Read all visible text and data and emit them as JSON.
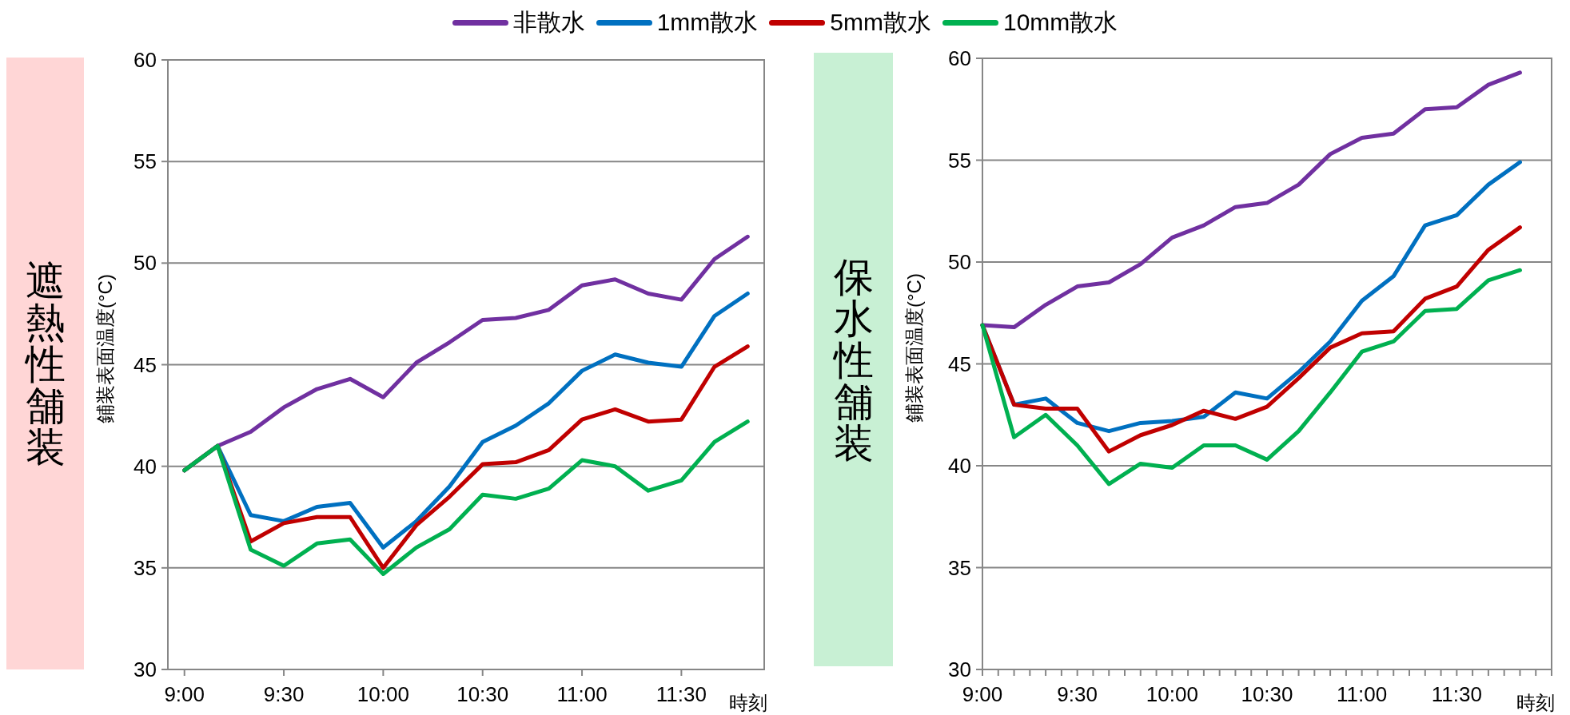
{
  "chart_data": [
    {
      "type": "line",
      "title": "遮熱性舗装",
      "ylabel": "鋪装表面温度(°C)",
      "xlabel": "時刻",
      "legend": "top",
      "grid": "y",
      "x": [
        9,
        9.1667,
        9.3333,
        9.5,
        9.6667,
        9.8333,
        10,
        10.1667,
        10.3333,
        10.5,
        10.6667,
        10.8333,
        11,
        11.1667,
        11.3333,
        11.5,
        11.6667,
        11.8333
      ],
      "xlim": [
        8.9167,
        11.9167
      ],
      "xticks": [
        {
          "value": 9,
          "label": "9:00"
        },
        {
          "value": 9.5,
          "label": "9:30"
        },
        {
          "value": 10,
          "label": "10:00"
        },
        {
          "value": 10.5,
          "label": "10:30"
        },
        {
          "value": 11,
          "label": "11:00"
        },
        {
          "value": 11.5,
          "label": "11:30"
        }
      ],
      "ylim": [
        30,
        60
      ],
      "yticks": [
        30,
        35,
        40,
        45,
        50,
        55,
        60
      ],
      "series": [
        {
          "name": "非散水",
          "color": "#7030a0",
          "values": [
            39.8,
            41.0,
            41.7,
            42.9,
            43.8,
            44.3,
            43.4,
            45.1,
            46.1,
            47.2,
            47.3,
            47.7,
            48.9,
            49.2,
            48.5,
            48.2,
            50.2,
            51.3
          ]
        },
        {
          "name": "1mm散水",
          "color": "#0070c0",
          "values": [
            39.8,
            41.0,
            37.6,
            37.3,
            38.0,
            38.2,
            36.0,
            37.3,
            39.0,
            41.2,
            42.0,
            43.1,
            44.7,
            45.5,
            45.1,
            44.9,
            47.4,
            48.5
          ]
        },
        {
          "name": "5mm散水",
          "color": "#c00000",
          "values": [
            39.8,
            41.0,
            36.3,
            37.2,
            37.5,
            37.5,
            35.0,
            37.1,
            38.5,
            40.1,
            40.2,
            40.8,
            42.3,
            42.8,
            42.2,
            42.3,
            44.9,
            45.9
          ]
        },
        {
          "name": "10mm散水",
          "color": "#00b050",
          "values": [
            39.8,
            41.0,
            35.9,
            35.1,
            36.2,
            36.4,
            34.7,
            36.0,
            36.9,
            38.6,
            38.4,
            38.9,
            40.3,
            40.0,
            38.8,
            39.3,
            41.2,
            42.2
          ]
        }
      ]
    },
    {
      "type": "line",
      "title": "保水性舗装",
      "ylabel": "鋪装表面温度(°C)",
      "xlabel": "時刻",
      "grid": "y",
      "x": [
        9,
        9.1667,
        9.3333,
        9.5,
        9.6667,
        9.8333,
        10,
        10.1667,
        10.3333,
        10.5,
        10.6667,
        10.8333,
        11,
        11.1667,
        11.3333,
        11.5,
        11.6667,
        11.8333
      ],
      "xlim": [
        9,
        12
      ],
      "xticks": [
        {
          "value": 9,
          "label": "9:00"
        },
        {
          "value": 9.0833,
          "label": null
        },
        {
          "value": 9.1667,
          "label": null
        },
        {
          "value": 9.25,
          "label": null
        },
        {
          "value": 9.3333,
          "label": null
        },
        {
          "value": 9.4167,
          "label": null
        },
        {
          "value": 9.5,
          "label": "9:30"
        },
        {
          "value": 9.5833,
          "label": null
        },
        {
          "value": 9.6667,
          "label": null
        },
        {
          "value": 9.75,
          "label": null
        },
        {
          "value": 9.8333,
          "label": null
        },
        {
          "value": 9.9167,
          "label": null
        },
        {
          "value": 10,
          "label": "10:00"
        },
        {
          "value": 10.0833,
          "label": null
        },
        {
          "value": 10.1667,
          "label": null
        },
        {
          "value": 10.25,
          "label": null
        },
        {
          "value": 10.3333,
          "label": null
        },
        {
          "value": 10.4167,
          "label": null
        },
        {
          "value": 10.5,
          "label": "10:30"
        },
        {
          "value": 10.5833,
          "label": null
        },
        {
          "value": 10.6667,
          "label": null
        },
        {
          "value": 10.75,
          "label": null
        },
        {
          "value": 10.8333,
          "label": null
        },
        {
          "value": 10.9167,
          "label": null
        },
        {
          "value": 11,
          "label": "11:00"
        },
        {
          "value": 11.0833,
          "label": null
        },
        {
          "value": 11.1667,
          "label": null
        },
        {
          "value": 11.25,
          "label": null
        },
        {
          "value": 11.3333,
          "label": null
        },
        {
          "value": 11.4167,
          "label": null
        },
        {
          "value": 11.5,
          "label": "11:30"
        },
        {
          "value": 11.5833,
          "label": null
        },
        {
          "value": 11.6667,
          "label": null
        },
        {
          "value": 11.75,
          "label": null
        },
        {
          "value": 11.8333,
          "label": null
        },
        {
          "value": 11.9167,
          "label": null
        },
        {
          "value": 12,
          "label": null
        }
      ],
      "ylim": [
        30,
        60
      ],
      "yticks": [
        30,
        35,
        40,
        45,
        50,
        55,
        60
      ],
      "series": [
        {
          "color": "#7030a0",
          "values": [
            46.9,
            46.8,
            47.9,
            48.8,
            49.0,
            49.9,
            51.2,
            51.8,
            52.7,
            52.9,
            53.8,
            55.3,
            56.1,
            56.3,
            57.5,
            57.6,
            58.7,
            59.3
          ]
        },
        {
          "color": "#0070c0",
          "values": [
            46.9,
            43.0,
            43.3,
            42.1,
            41.7,
            42.1,
            42.2,
            42.4,
            43.6,
            43.3,
            44.6,
            46.1,
            48.1,
            49.3,
            51.8,
            52.3,
            53.8,
            54.9
          ]
        },
        {
          "color": "#c00000",
          "values": [
            46.9,
            43.0,
            42.8,
            42.8,
            40.7,
            41.5,
            42.0,
            42.7,
            42.3,
            42.9,
            44.3,
            45.8,
            46.5,
            46.6,
            48.2,
            48.8,
            50.6,
            51.7
          ]
        },
        {
          "color": "#00b050",
          "values": [
            46.9,
            41.4,
            42.5,
            41.0,
            39.1,
            40.1,
            39.9,
            41.0,
            41.0,
            40.3,
            41.7,
            43.6,
            45.6,
            46.1,
            47.6,
            47.7,
            49.1,
            49.6
          ]
        }
      ]
    }
  ]
}
